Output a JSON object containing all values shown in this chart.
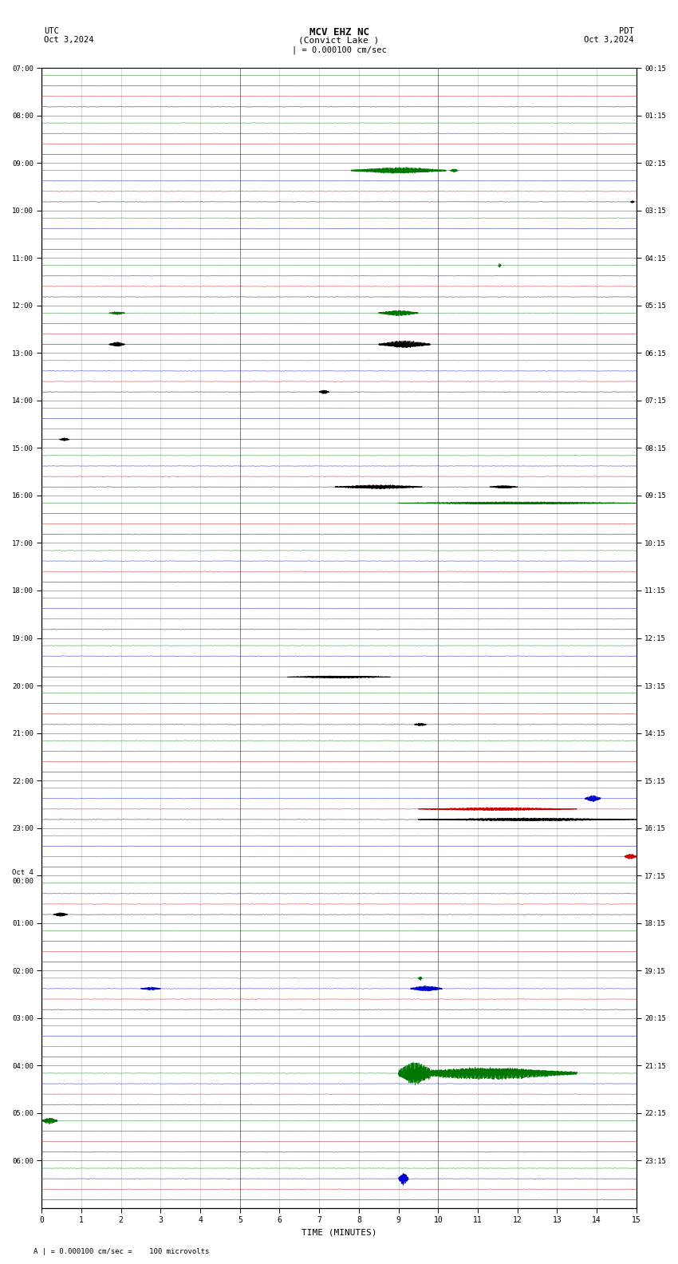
{
  "title_line1": "MCV EHZ NC",
  "title_line2": "(Convict Lake )",
  "title_scale": "| = 0.000100 cm/sec",
  "label_left_top": "UTC",
  "label_left_date": "Oct 3,2024",
  "label_right_top": "PDT",
  "label_right_date": "Oct 3,2024",
  "xlabel": "TIME (MINUTES)",
  "bottom_note": "A | = 0.000100 cm/sec =    100 microvolts",
  "utc_times": [
    "07:00",
    "08:00",
    "09:00",
    "10:00",
    "11:00",
    "12:00",
    "13:00",
    "14:00",
    "15:00",
    "16:00",
    "17:00",
    "18:00",
    "19:00",
    "20:00",
    "21:00",
    "22:00",
    "23:00",
    "Oct 4\n00:00",
    "01:00",
    "02:00",
    "03:00",
    "04:00",
    "05:00",
    "06:00"
  ],
  "pdt_times": [
    "00:15",
    "01:15",
    "02:15",
    "03:15",
    "04:15",
    "05:15",
    "06:15",
    "07:15",
    "08:15",
    "09:15",
    "10:15",
    "11:15",
    "12:15",
    "13:15",
    "14:15",
    "15:15",
    "16:15",
    "17:15",
    "18:15",
    "19:15",
    "20:15",
    "21:15",
    "22:15",
    "23:15"
  ],
  "n_rows": 24,
  "n_minutes": 15,
  "bg_color": "#ffffff",
  "grid_color_major": "#888888",
  "grid_color_minor": "#bbbbbb",
  "trace_colors": [
    "#000000",
    "#cc0000",
    "#0000cc",
    "#007700"
  ],
  "noise_amp": 0.008,
  "subrow_offsets": [
    0.82,
    0.6,
    0.38,
    0.16
  ],
  "events": [
    {
      "row": 2,
      "sub": 3,
      "t0": 7.8,
      "t1": 10.2,
      "amp": 0.06,
      "color": "#007700"
    },
    {
      "row": 2,
      "sub": 3,
      "t0": 10.3,
      "t1": 10.5,
      "amp": 0.035,
      "color": "#007700"
    },
    {
      "row": 2,
      "sub": 0,
      "t0": 14.85,
      "t1": 14.95,
      "amp": 0.025,
      "color": "#000000"
    },
    {
      "row": 4,
      "sub": 3,
      "t0": 11.52,
      "t1": 11.58,
      "amp": 0.04,
      "color": "#007700"
    },
    {
      "row": 5,
      "sub": 0,
      "t0": 1.7,
      "t1": 2.1,
      "amp": 0.045,
      "color": "#000000"
    },
    {
      "row": 5,
      "sub": 3,
      "t0": 1.7,
      "t1": 2.1,
      "amp": 0.03,
      "color": "#007700"
    },
    {
      "row": 5,
      "sub": 0,
      "t0": 8.5,
      "t1": 9.8,
      "amp": 0.07,
      "color": "#000000"
    },
    {
      "row": 5,
      "sub": 3,
      "t0": 8.5,
      "t1": 9.5,
      "amp": 0.055,
      "color": "#007700"
    },
    {
      "row": 6,
      "sub": 0,
      "t0": 7.0,
      "t1": 7.25,
      "amp": 0.04,
      "color": "#000000"
    },
    {
      "row": 7,
      "sub": 0,
      "t0": 0.45,
      "t1": 0.7,
      "amp": 0.03,
      "color": "#000000"
    },
    {
      "row": 8,
      "sub": 0,
      "t0": 7.4,
      "t1": 9.6,
      "amp": 0.04,
      "color": "#000000"
    },
    {
      "row": 8,
      "sub": 0,
      "t0": 8.0,
      "t1": 8.25,
      "amp": 0.055,
      "color": "#000000"
    },
    {
      "row": 8,
      "sub": 0,
      "t0": 11.3,
      "t1": 12.0,
      "amp": 0.03,
      "color": "#000000"
    },
    {
      "row": 9,
      "sub": 3,
      "t0": 9.0,
      "t1": 15.0,
      "amp": 0.025,
      "color": "#007700"
    },
    {
      "row": 12,
      "sub": 0,
      "t0": 6.2,
      "t1": 8.8,
      "amp": 0.025,
      "color": "#000000"
    },
    {
      "row": 13,
      "sub": 0,
      "t0": 9.4,
      "t1": 9.7,
      "amp": 0.03,
      "color": "#000000"
    },
    {
      "row": 15,
      "sub": 0,
      "t0": 9.5,
      "t1": 15.0,
      "amp": 0.03,
      "color": "#000000"
    },
    {
      "row": 15,
      "sub": 1,
      "t0": 9.5,
      "t1": 13.5,
      "amp": 0.03,
      "color": "#cc0000"
    },
    {
      "row": 15,
      "sub": 2,
      "t0": 13.7,
      "t1": 14.1,
      "amp": 0.06,
      "color": "#0000cc"
    },
    {
      "row": 16,
      "sub": 1,
      "t0": 14.7,
      "t1": 15.0,
      "amp": 0.055,
      "color": "#cc0000"
    },
    {
      "row": 17,
      "sub": 0,
      "t0": 0.3,
      "t1": 0.65,
      "amp": 0.04,
      "color": "#000000"
    },
    {
      "row": 19,
      "sub": 2,
      "t0": 2.5,
      "t1": 3.0,
      "amp": 0.03,
      "color": "#0000cc"
    },
    {
      "row": 19,
      "sub": 2,
      "t0": 9.3,
      "t1": 10.1,
      "amp": 0.055,
      "color": "#0000cc"
    },
    {
      "row": 19,
      "sub": 3,
      "t0": 9.5,
      "t1": 9.6,
      "amp": 0.04,
      "color": "#007700"
    },
    {
      "row": 21,
      "sub": 3,
      "t0": 9.0,
      "t1": 13.5,
      "amp": 0.12,
      "color": "#007700"
    },
    {
      "row": 21,
      "sub": 3,
      "t0": 9.0,
      "t1": 9.8,
      "amp": 0.18,
      "color": "#007700"
    },
    {
      "row": 22,
      "sub": 3,
      "t0": 0.0,
      "t1": 0.4,
      "amp": 0.06,
      "color": "#007700"
    },
    {
      "row": 23,
      "sub": 2,
      "t0": 9.0,
      "t1": 9.25,
      "amp": 0.12,
      "color": "#0000cc"
    }
  ]
}
